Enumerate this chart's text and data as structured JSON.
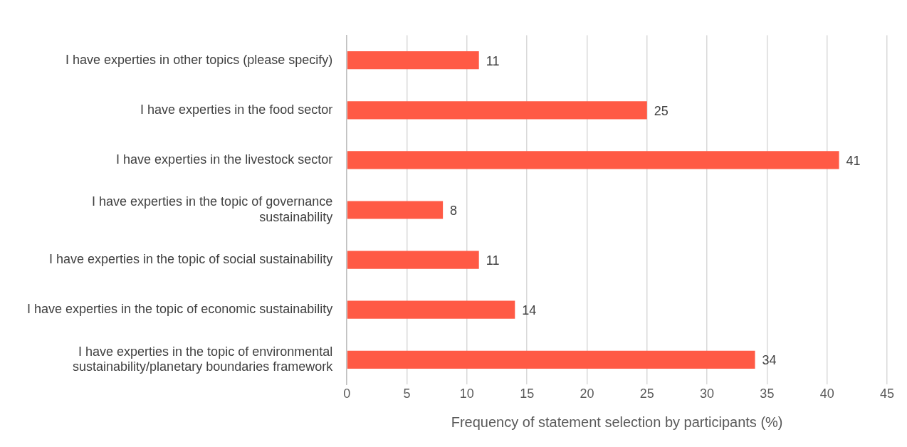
{
  "chart_data": {
    "type": "bar",
    "orientation": "horizontal",
    "xlabel": "Frequency of statement selection by participants (%)",
    "categories": [
      "I have experties in other topics (please specify)",
      "I have experties in the food sector",
      "I have experties in the livestock sector",
      "I have experties in the topic of governance sustainability",
      "I have experties in the topic of social sustainability",
      "I have experties in the topic of economic sustainability",
      "I have experties in the topic of environmental sustainability/planetary boundaries framework"
    ],
    "values": [
      11,
      25,
      41,
      8,
      11,
      14,
      34
    ],
    "color": "#ff5a45",
    "xlim": [
      0,
      45
    ],
    "xticks": [
      0,
      5,
      10,
      15,
      20,
      25,
      30,
      35,
      40,
      45
    ],
    "grid": "x",
    "legend": false,
    "data_labels": true
  }
}
